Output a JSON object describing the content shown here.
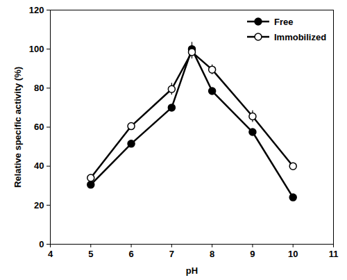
{
  "chart_data": {
    "type": "line",
    "x_label": "pH",
    "y_label": "Relative specific activity (%)",
    "x": [
      5,
      6,
      7,
      7.5,
      8,
      9,
      10
    ],
    "series": [
      {
        "name": "Free",
        "color": "#000000",
        "marker": "filled_circle",
        "line_style": "solid",
        "values": [
          30.5,
          51.5,
          70,
          100,
          78.5,
          57.5,
          24
        ],
        "errors": [
          1,
          1,
          1,
          3.5,
          1,
          1,
          1
        ]
      },
      {
        "name": "Immobilized",
        "color": "#000000",
        "marker": "open_circle",
        "line_style": "solid",
        "values": [
          34,
          60.5,
          79.5,
          98.5,
          89.5,
          65.5,
          40
        ],
        "errors": [
          1,
          1.5,
          3,
          3.5,
          2.5,
          3,
          1
        ]
      }
    ],
    "xlim": [
      4,
      11
    ],
    "xticks": [
      4,
      5,
      6,
      7,
      8,
      9,
      10,
      11
    ],
    "ylim": [
      0,
      120
    ],
    "yticks": [
      0,
      20,
      40,
      60,
      80,
      100,
      120
    ],
    "grid": false,
    "legend": "upper right"
  }
}
